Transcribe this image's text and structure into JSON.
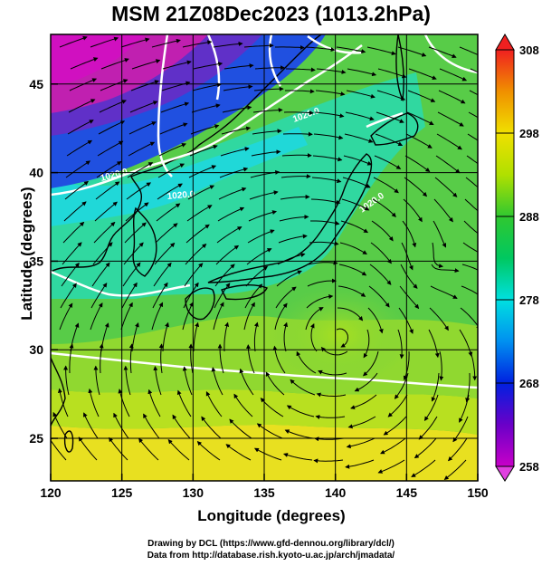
{
  "title": "MSM 21Z08Dec2023 (1013.2hPa)",
  "xlabel": "Longitude (degrees)",
  "ylabel": "Latitude  (degrees)",
  "xticks": [
    "120",
    "125",
    "130",
    "135",
    "140",
    "145",
    "150"
  ],
  "yticks": [
    "25",
    "30",
    "35",
    "40",
    "45"
  ],
  "colorbar": {
    "ticks": [
      "308",
      "298",
      "288",
      "278",
      "268",
      "258"
    ],
    "min": 258,
    "max": 308
  },
  "contour_labels": [
    "1020.0",
    "1020.0",
    "1020.0",
    "1020.0"
  ],
  "credits": {
    "line1": "Drawing by DCL (https://www.gfd-dennou.org/library/dcl/)",
    "line2": "Data from http://database.rish.kyoto-u.ac.jp/arch/jmadata/"
  }
}
